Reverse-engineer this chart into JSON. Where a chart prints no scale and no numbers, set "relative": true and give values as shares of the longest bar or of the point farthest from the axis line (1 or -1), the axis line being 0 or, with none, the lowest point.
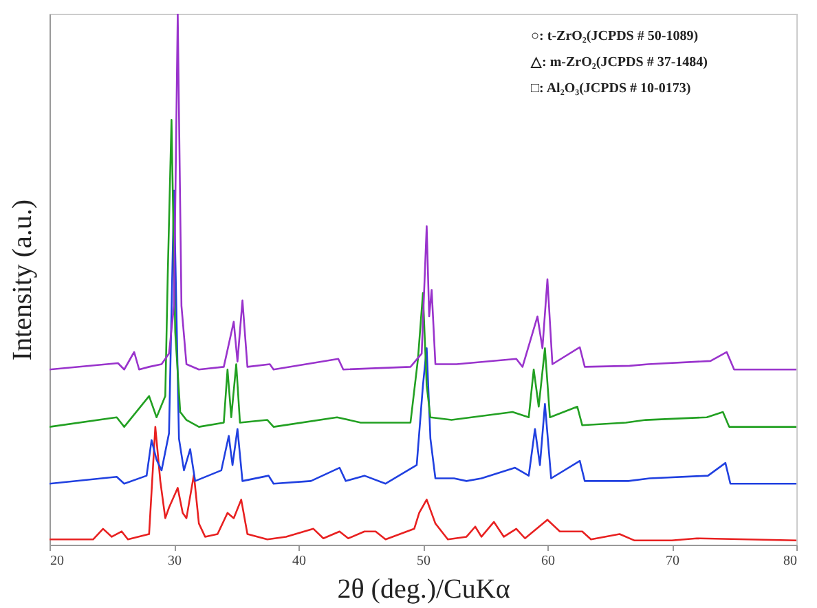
{
  "chart_data": {
    "type": "line",
    "relative": true,
    "xlabel": "2θ (deg.)/CuKα",
    "ylabel": "Intensity (a.u.)",
    "xlim": [
      20,
      80
    ],
    "xticks": [
      20,
      30,
      40,
      50,
      60,
      70,
      80
    ],
    "annotations": [
      "○: t-ZrO₂(JCPDS # 50-1089)",
      "△: m-ZrO₂(JCPDS # 37-1484)",
      "□: Al₂O₃(JCPDS # 10-0173)"
    ],
    "series": [
      {
        "color": "#e82020",
        "x": [
          20,
          23.5,
          24.3,
          25,
          25.8,
          26.3,
          28,
          28.5,
          28.9,
          29.3,
          29.6,
          30.3,
          30.7,
          31,
          31.6,
          32,
          32.5,
          33.5,
          34.3,
          34.8,
          35.4,
          35.9,
          37.5,
          39,
          41.2,
          42,
          43.3,
          44,
          45.3,
          46.2,
          47,
          49.3,
          49.7,
          50.3,
          51,
          52,
          53.5,
          54.2,
          54.7,
          55.7,
          56.5,
          57.5,
          58.2,
          60,
          61,
          62.8,
          63.5,
          65.8,
          67,
          70,
          72,
          80
        ],
        "values": [
          0.01,
          0.01,
          0.03,
          0.015,
          0.025,
          0.01,
          0.02,
          0.222,
          0.12,
          0.05,
          0.07,
          0.107,
          0.06,
          0.05,
          0.132,
          0.04,
          0.015,
          0.02,
          0.06,
          0.05,
          0.085,
          0.02,
          0.01,
          0.015,
          0.03,
          0.012,
          0.025,
          0.012,
          0.025,
          0.025,
          0.01,
          0.03,
          0.06,
          0.085,
          0.04,
          0.01,
          0.015,
          0.034,
          0.015,
          0.043,
          0.015,
          0.03,
          0.012,
          0.047,
          0.025,
          0.025,
          0.01,
          0.02,
          0.008,
          0.008,
          0.012,
          0.008
        ]
      },
      {
        "color": "#2040e0",
        "x": [
          20,
          25.4,
          26,
          27.8,
          28.2,
          28.6,
          29,
          29.6,
          30,
          30.4,
          30.8,
          31.3,
          31.7,
          33.8,
          34.4,
          34.7,
          35.1,
          35.5,
          37.6,
          38,
          41,
          43.3,
          43.8,
          45.3,
          47,
          49.5,
          50,
          50.3,
          50.6,
          51,
          52.5,
          53.5,
          54.7,
          57.4,
          58.5,
          59,
          59.4,
          59.8,
          60.3,
          62.6,
          63,
          66.5,
          68.2,
          72.9,
          74.3,
          74.7,
          80
        ],
        "values": [
          0.115,
          0.128,
          0.115,
          0.13,
          0.197,
          0.16,
          0.14,
          0.21,
          0.667,
          0.2,
          0.14,
          0.18,
          0.12,
          0.14,
          0.205,
          0.15,
          0.218,
          0.12,
          0.13,
          0.115,
          0.12,
          0.145,
          0.12,
          0.13,
          0.115,
          0.15,
          0.3,
          0.37,
          0.2,
          0.125,
          0.125,
          0.12,
          0.125,
          0.145,
          0.13,
          0.218,
          0.15,
          0.265,
          0.125,
          0.158,
          0.12,
          0.12,
          0.125,
          0.13,
          0.154,
          0.115,
          0.115
        ]
      },
      {
        "color": "#22a022",
        "x": [
          20,
          25.4,
          26,
          28,
          28.6,
          29.3,
          29.5,
          29.8,
          30.1,
          30.5,
          31,
          32,
          34,
          34.3,
          34.6,
          35,
          35.3,
          37.5,
          38,
          43.1,
          45,
          49,
          49.6,
          50,
          50.3,
          50.6,
          52.3,
          57.2,
          58.5,
          58.9,
          59.3,
          59.8,
          60.2,
          62.4,
          62.8,
          66.3,
          67.9,
          72.8,
          74.1,
          74.6,
          80
        ],
        "values": [
          0.222,
          0.24,
          0.222,
          0.28,
          0.24,
          0.28,
          0.51,
          0.8,
          0.4,
          0.25,
          0.235,
          0.222,
          0.23,
          0.33,
          0.24,
          0.34,
          0.23,
          0.235,
          0.222,
          0.24,
          0.23,
          0.23,
          0.35,
          0.474,
          0.3,
          0.24,
          0.235,
          0.25,
          0.24,
          0.33,
          0.26,
          0.37,
          0.24,
          0.26,
          0.225,
          0.23,
          0.235,
          0.24,
          0.25,
          0.222,
          0.222
        ]
      },
      {
        "color": "#9933cc",
        "x": [
          20,
          25.5,
          26,
          26.8,
          27.2,
          28,
          29,
          29.6,
          30,
          30.3,
          30.6,
          31,
          32,
          34,
          34.8,
          35.1,
          35.5,
          35.9,
          37.7,
          38,
          43.2,
          43.6,
          49,
          49.9,
          50.3,
          50.5,
          50.7,
          51,
          52.7,
          57.5,
          58,
          59.2,
          59.6,
          60,
          60.4,
          62.6,
          63,
          66.6,
          68.1,
          73.1,
          74.4,
          75,
          80
        ],
        "values": [
          0.33,
          0.342,
          0.33,
          0.363,
          0.33,
          0.335,
          0.34,
          0.36,
          0.45,
          1.0,
          0.45,
          0.34,
          0.33,
          0.335,
          0.42,
          0.345,
          0.46,
          0.335,
          0.34,
          0.33,
          0.35,
          0.33,
          0.335,
          0.36,
          0.6,
          0.43,
          0.48,
          0.34,
          0.34,
          0.35,
          0.335,
          0.43,
          0.37,
          0.5,
          0.34,
          0.372,
          0.335,
          0.337,
          0.34,
          0.346,
          0.363,
          0.33,
          0.33
        ]
      }
    ]
  }
}
